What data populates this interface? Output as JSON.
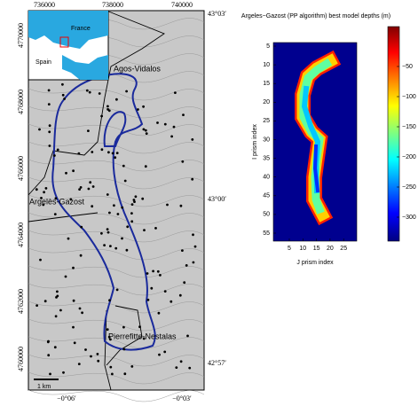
{
  "map": {
    "x_ticks": [
      "736000",
      "738000",
      "740000"
    ],
    "y_ticks": [
      "4770000",
      "4768000",
      "4766000",
      "4764000",
      "4762000",
      "4760000"
    ],
    "lat_ticks": [
      "43°03′",
      "43°00′",
      "42°57′"
    ],
    "lon_ticks": [
      "−0°06′",
      "−0°03′"
    ],
    "inset_labels": [
      "France",
      "Spain"
    ],
    "places": [
      "Agos-Vidalos",
      "Argelès-Gazost",
      "Pierrefitte-Nestalas"
    ],
    "scale_bar": "1 km"
  },
  "heatmap": {
    "title": "Argeles−Gazost (PP algorithm) best model depths (m)",
    "x_label": "J prism index",
    "y_label": "I prism index",
    "x_ticks": [
      "5",
      "10",
      "15",
      "20",
      "25"
    ],
    "y_ticks": [
      "5",
      "10",
      "15",
      "20",
      "25",
      "30",
      "35",
      "40",
      "45",
      "50",
      "55"
    ],
    "colorbar_ticks": [
      "−50",
      "−100",
      "−150",
      "−200",
      "−250",
      "−300"
    ]
  }
}
